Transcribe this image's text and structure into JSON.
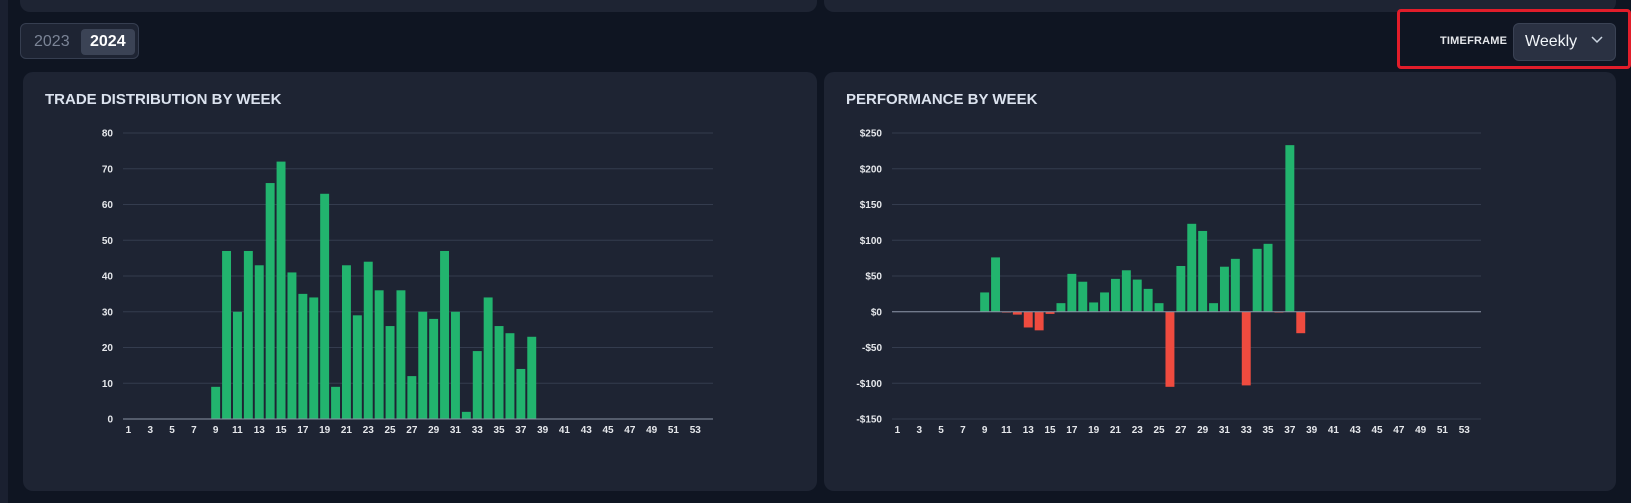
{
  "year_toggle": {
    "options": [
      "2023",
      "2024"
    ],
    "selected": "2024"
  },
  "timeframe": {
    "label": "TIMEFRAME",
    "value": "Weekly"
  },
  "colors": {
    "positive": "#22b46e",
    "negative": "#ef4b3f",
    "grid": "#343c4e",
    "axis": "#8b93a6"
  },
  "chart_data": [
    {
      "type": "bar",
      "title": "TRADE DISTRIBUTION BY WEEK",
      "x": [
        1,
        2,
        3,
        4,
        5,
        6,
        7,
        8,
        9,
        10,
        11,
        12,
        13,
        14,
        15,
        16,
        17,
        18,
        19,
        20,
        21,
        22,
        23,
        24,
        25,
        26,
        27,
        28,
        29,
        30,
        31,
        32,
        33,
        34,
        35,
        36,
        37,
        38,
        39,
        40,
        41,
        42,
        43,
        44,
        45,
        46,
        47,
        48,
        49,
        50,
        51,
        52,
        53
      ],
      "x_tick_labels": [
        "1",
        "3",
        "5",
        "7",
        "9",
        "11",
        "13",
        "15",
        "17",
        "19",
        "21",
        "23",
        "25",
        "27",
        "29",
        "31",
        "33",
        "35",
        "37",
        "39",
        "41",
        "43",
        "45",
        "47",
        "49",
        "51",
        "53"
      ],
      "values": [
        0,
        0,
        0,
        0,
        0,
        0,
        0,
        0,
        9,
        47,
        30,
        47,
        43,
        66,
        72,
        41,
        35,
        34,
        63,
        9,
        43,
        29,
        44,
        36,
        26,
        36,
        12,
        30,
        28,
        47,
        30,
        2,
        19,
        34,
        26,
        24,
        14,
        23,
        0,
        0,
        0,
        0,
        0,
        0,
        0,
        0,
        0,
        0,
        0,
        0,
        0,
        0,
        0
      ],
      "ylim": [
        0,
        80
      ],
      "y_ticks": [
        0,
        10,
        20,
        30,
        40,
        50,
        60,
        70,
        80
      ],
      "y_tick_labels": [
        "0",
        "10",
        "20",
        "30",
        "40",
        "50",
        "60",
        "70",
        "80"
      ],
      "grid": true
    },
    {
      "type": "bar",
      "title": "PERFORMANCE BY WEEK",
      "x": [
        1,
        2,
        3,
        4,
        5,
        6,
        7,
        8,
        9,
        10,
        11,
        12,
        13,
        14,
        15,
        16,
        17,
        18,
        19,
        20,
        21,
        22,
        23,
        24,
        25,
        26,
        27,
        28,
        29,
        30,
        31,
        32,
        33,
        34,
        35,
        36,
        37,
        38,
        39,
        40,
        41,
        42,
        43,
        44,
        45,
        46,
        47,
        48,
        49,
        50,
        51,
        52,
        53
      ],
      "x_tick_labels": [
        "1",
        "3",
        "5",
        "7",
        "9",
        "11",
        "13",
        "15",
        "17",
        "19",
        "21",
        "23",
        "25",
        "27",
        "29",
        "31",
        "33",
        "35",
        "37",
        "39",
        "41",
        "43",
        "45",
        "47",
        "49",
        "51",
        "53"
      ],
      "values": [
        0,
        0,
        0,
        0,
        0,
        0,
        0,
        0,
        27,
        76,
        -1,
        -4,
        -22,
        -26,
        -3,
        12,
        53,
        42,
        13,
        27,
        46,
        58,
        45,
        32,
        12,
        -105,
        64,
        123,
        113,
        12,
        63,
        74,
        -103,
        88,
        95,
        -1,
        233,
        -30,
        0,
        0,
        0,
        0,
        0,
        0,
        0,
        0,
        0,
        0,
        0,
        0,
        0,
        0,
        0
      ],
      "ylim": [
        -150,
        250
      ],
      "y_ticks": [
        -150,
        -100,
        -50,
        0,
        50,
        100,
        150,
        200,
        250
      ],
      "y_tick_labels": [
        "-$150",
        "-$100",
        "-$50",
        "$0",
        "$50",
        "$100",
        "$150",
        "$200",
        "$250"
      ],
      "grid": true
    }
  ]
}
